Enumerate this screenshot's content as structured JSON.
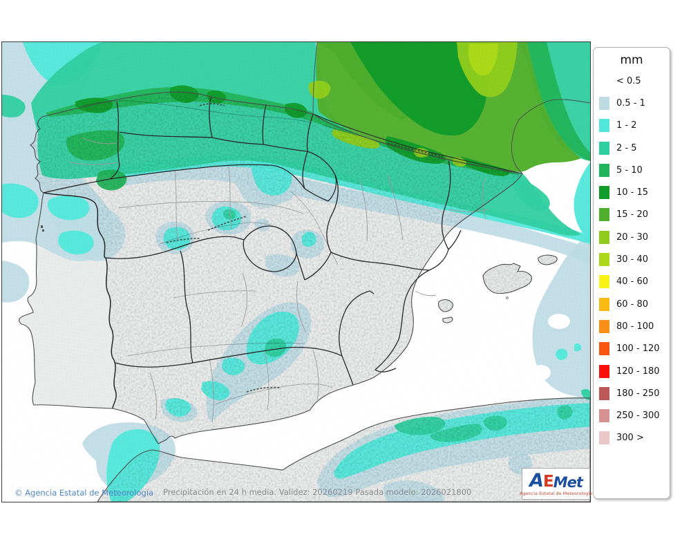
{
  "map": {
    "copyright": "© Agencia Estatal de Meteorología",
    "caption": "Precipitación en 24 h media. Validez: 20260219 Pasada modelo: 2026021800"
  },
  "legend": {
    "title": "mm",
    "entries": [
      {
        "label": "< 0.5",
        "color": null
      },
      {
        "label": "0.5 - 1",
        "color": "#bedbe4"
      },
      {
        "label": "1 - 2",
        "color": "#52e7da"
      },
      {
        "label": "2 - 5",
        "color": "#30cfa0"
      },
      {
        "label": "5 - 10",
        "color": "#22b45a"
      },
      {
        "label": "10 - 15",
        "color": "#119b2b"
      },
      {
        "label": "15 - 20",
        "color": "#4fae2b"
      },
      {
        "label": "20 - 30",
        "color": "#8ecb1d"
      },
      {
        "label": "30 - 40",
        "color": "#abd917"
      },
      {
        "label": "40 - 60",
        "color": "#f8f215"
      },
      {
        "label": "60 - 80",
        "color": "#f9b914"
      },
      {
        "label": "80 - 100",
        "color": "#f98f16"
      },
      {
        "label": "100 - 120",
        "color": "#fa5410"
      },
      {
        "label": "120 - 180",
        "color": "#fa0f0f"
      },
      {
        "label": "180 - 250",
        "color": "#bc5757"
      },
      {
        "label": "250 - 300",
        "color": "#d69193"
      },
      {
        "label": "300 >",
        "color": "#eac7c9"
      }
    ]
  },
  "logo": {
    "letters": [
      {
        "t": "A",
        "c": "#1c4f9e"
      },
      {
        "t": "E",
        "c": "#d43a22"
      },
      {
        "t": "M",
        "c": "#1c4f9e"
      },
      {
        "t": "e",
        "c": "#1c4f9e"
      },
      {
        "t": "t",
        "c": "#1c4f9e"
      }
    ],
    "subtitle": "Agencia Estatal de Meteorología"
  }
}
